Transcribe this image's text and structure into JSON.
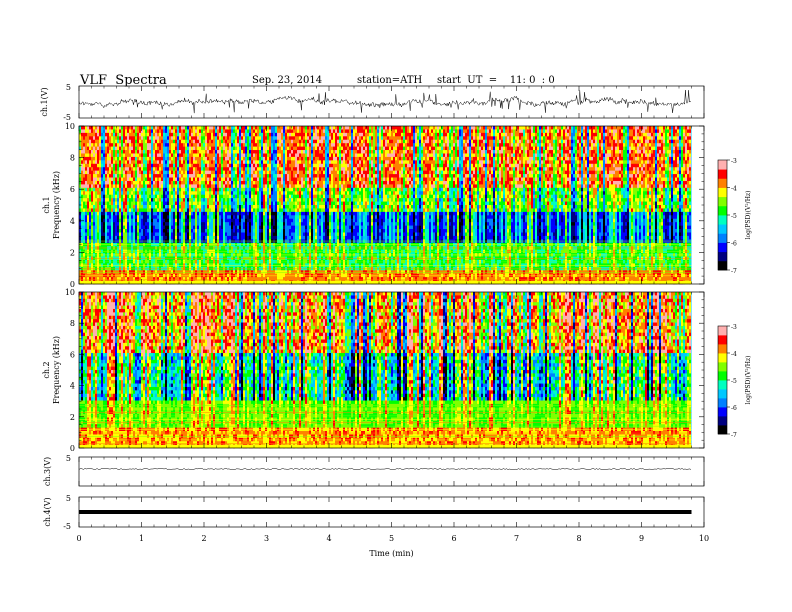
{
  "header": {
    "title": "VLF  Spectra",
    "date": "Sep. 23, 2014",
    "station": "station=ATH",
    "start": "start  UT  =    11: 0  : 0"
  },
  "chart_data": {
    "type": "heatmap",
    "x_label": "Time  (min)",
    "x_ticks": [
      "0",
      "1",
      "2",
      "3",
      "4",
      "5",
      "6",
      "7",
      "8",
      "9",
      "10"
    ],
    "x_range": [
      0,
      10
    ],
    "data_end_min": 9.8,
    "panels": [
      {
        "kind": "timeseries",
        "label": "ch.1(V)",
        "yticks": [
          "5",
          "-5"
        ],
        "ylim": [
          -5,
          5
        ],
        "description_level": "noisy ~0 V with bursts"
      },
      {
        "kind": "spectrogram",
        "label_channel": "ch.1",
        "label_axis": "Frequency  (kHz)",
        "yticks": [
          "10",
          "8",
          "6",
          "4",
          "2",
          "0"
        ],
        "ylim": [
          0,
          10
        ],
        "colorbar": {
          "label": "log(PSD)(V²/Hz)",
          "ticks": [
            "-3",
            "-4",
            "-5",
            "-6",
            "-7"
          ],
          "range": [
            -7,
            -3
          ]
        }
      },
      {
        "kind": "spectrogram",
        "label_channel": "ch.2",
        "label_axis": "Frequency  (kHz)",
        "yticks": [
          "10",
          "8",
          "6",
          "4",
          "2",
          "0"
        ],
        "ylim": [
          0,
          10
        ],
        "colorbar": {
          "label": "log(PSD)(V²/Hz)",
          "ticks": [
            "-3",
            "-4",
            "-5",
            "-6",
            "-7"
          ],
          "range": [
            -7,
            -3
          ]
        }
      },
      {
        "kind": "timeseries",
        "label": "ch.3(V)",
        "yticks": [
          "5"
        ],
        "ylim": [
          -5,
          5
        ]
      },
      {
        "kind": "timeseries",
        "label": "ch.4(V)",
        "yticks": [
          "5",
          "-5"
        ],
        "ylim": [
          -5,
          5
        ]
      }
    ],
    "colormap": [
      "#000000",
      "#00007f",
      "#0000ff",
      "#0080ff",
      "#00c8ff",
      "#00ffc0",
      "#00ff00",
      "#80ff00",
      "#ffff00",
      "#ff8000",
      "#ff0000",
      "#ffb0b0"
    ]
  }
}
